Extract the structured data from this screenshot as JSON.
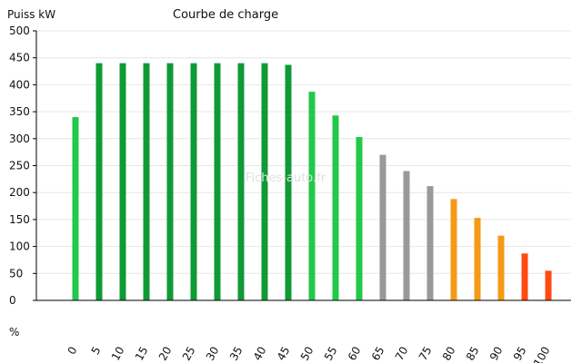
{
  "chart_data": {
    "type": "bar",
    "title": "Courbe de charge",
    "ylabel": "Puiss kW",
    "xlabel": "%",
    "watermark": "Fiches-auto.fr",
    "ylim": [
      0,
      500
    ],
    "yticks": [
      "0",
      "50",
      "100",
      "150",
      "200",
      "250",
      "300",
      "350",
      "400",
      "450",
      "500"
    ],
    "grid": true,
    "categories": [
      "0",
      "5",
      "10",
      "15",
      "20",
      "25",
      "30",
      "35",
      "40",
      "45",
      "50",
      "55",
      "60",
      "65",
      "70",
      "75",
      "80",
      "85",
      "90",
      "95",
      "100"
    ],
    "values": [
      340,
      440,
      440,
      440,
      440,
      440,
      440,
      440,
      440,
      437,
      387,
      343,
      303,
      270,
      240,
      212,
      188,
      153,
      120,
      87,
      55
    ],
    "bar_colors": [
      "#22c84a",
      "#0f9a35",
      "#0f9a35",
      "#0f9a35",
      "#0f9a35",
      "#0f9a35",
      "#0f9a35",
      "#0f9a35",
      "#0f9a35",
      "#0f9a35",
      "#22c84a",
      "#22c84a",
      "#22c84a",
      "#999999",
      "#999999",
      "#999999",
      "#f59a16",
      "#f59a16",
      "#f59a16",
      "#ff4a12",
      "#ff4a12"
    ],
    "colors": {
      "axis": "#000000",
      "grid": "#e6e6e6",
      "text": "#111111"
    }
  }
}
